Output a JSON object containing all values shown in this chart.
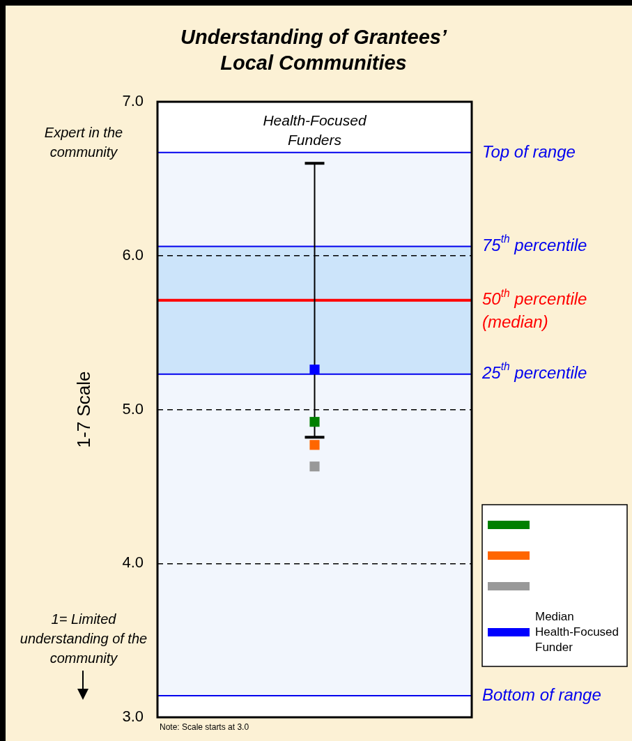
{
  "chart_data": {
    "type": "scatter",
    "title": "Understanding of Grantees’ Local Communities",
    "ylabel": "1-7 Scale",
    "categories": [
      "Health-Focused Funders"
    ],
    "series": [
      {
        "type": "scatter",
        "color": "#008000",
        "values": [
          4.92
        ]
      },
      {
        "type": "scatter",
        "color": "#ff6600",
        "values": [
          4.77
        ]
      },
      {
        "type": "scatter",
        "color": "#999999",
        "values": [
          4.63
        ]
      },
      {
        "type": "scatter",
        "name": "Median Health-Focused Funder",
        "color": "#0000ff",
        "values": [
          5.26
        ],
        "errors": [
          [
            4.82,
            6.6
          ]
        ]
      }
    ],
    "ylim": [
      3,
      7
    ],
    "yticks": [
      {
        "value": 3,
        "label": "3.0"
      },
      {
        "value": 4,
        "label": "4.0"
      },
      {
        "value": 5,
        "label": "5.0"
      },
      {
        "value": 6,
        "label": "6.0"
      },
      {
        "value": 7,
        "label": "7.0"
      }
    ],
    "grid": "y",
    "legend": "right",
    "marker": "square",
    "bands": [
      {
        "axis": "y",
        "from": 3.14,
        "to": 6.67,
        "color": "#f2f6fd"
      },
      {
        "axis": "y",
        "from": 5.23,
        "to": 6.06,
        "color": "#cce4fa"
      }
    ],
    "ref_lines": [
      {
        "axis": "y",
        "value": 6.67,
        "label": "Top of range",
        "color": "#0000ee"
      },
      {
        "axis": "y",
        "value": 6.06,
        "label": "75$^{th}$ percentile",
        "color": "#0000ee"
      },
      {
        "axis": "y",
        "value": 5.71,
        "label": "50$^{th}$ percentile (median)",
        "color": "#ff0000"
      },
      {
        "axis": "y",
        "value": 5.23,
        "label": "25$^{th}$ percentile",
        "color": "#0000ee"
      },
      {
        "axis": "y",
        "value": 3.14,
        "label": "Bottom of range",
        "color": "#0000ee"
      }
    ],
    "annotations": [
      "Expert in the community",
      "1= Limited understanding of the community",
      "Note: Scale starts at 3.0"
    ]
  }
}
